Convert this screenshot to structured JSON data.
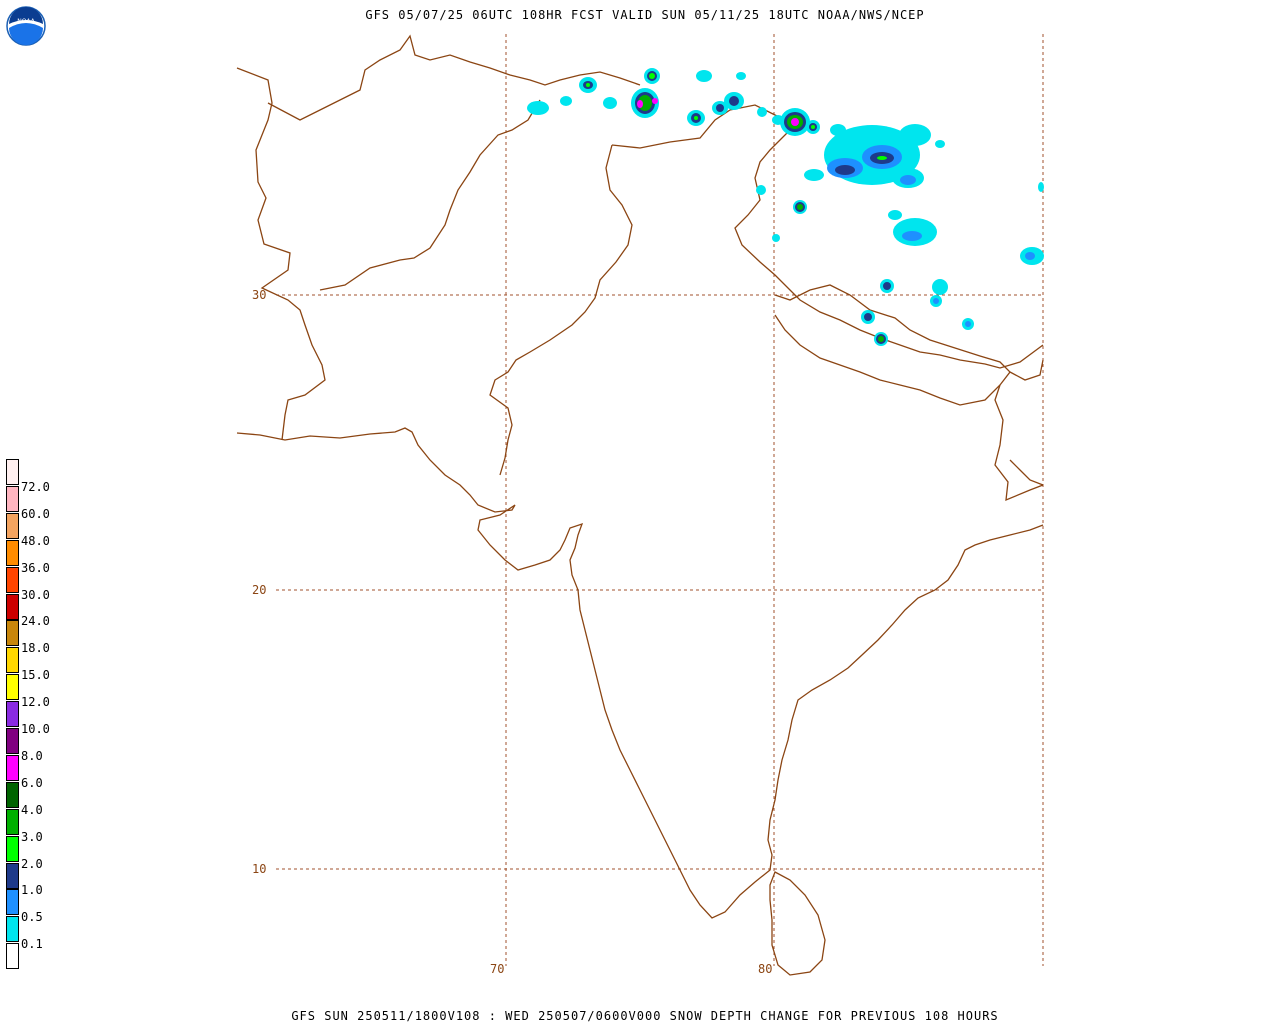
{
  "header": {
    "title": "GFS 05/07/25 06UTC 108HR FCST VALID SUN 05/11/25 18UTC NOAA/NWS/NCEP"
  },
  "footer": {
    "title": "GFS SUN 250511/1800V108 : WED 250507/0600V000 SNOW DEPTH CHANGE FOR PREVIOUS 108 HOURS"
  },
  "logo": {
    "text": "NOAA",
    "icon": "noaa-logo-icon"
  },
  "map": {
    "lat_labels": [
      "30",
      "20",
      "10"
    ],
    "lon_labels": [
      "70",
      "80"
    ],
    "colors": {
      "border": "#8b4513",
      "grid": "#a0522d"
    }
  },
  "legend": {
    "levels": [
      {
        "label": "72.0",
        "color": "#ffb6c1"
      },
      {
        "label": "60.0",
        "color": "#f4a460"
      },
      {
        "label": "48.0",
        "color": "#ff8c00"
      },
      {
        "label": "36.0",
        "color": "#ff4500"
      },
      {
        "label": "30.0",
        "color": "#cc0000"
      },
      {
        "label": "24.0",
        "color": "#c8860b"
      },
      {
        "label": "18.0",
        "color": "#ffd700"
      },
      {
        "label": "15.0",
        "color": "#ffff00"
      },
      {
        "label": "12.0",
        "color": "#8a2be2"
      },
      {
        "label": "10.0",
        "color": "#800080"
      },
      {
        "label": "8.0",
        "color": "#ff00ff"
      },
      {
        "label": "6.0",
        "color": "#006400"
      },
      {
        "label": "4.0",
        "color": "#00b000"
      },
      {
        "label": "3.0",
        "color": "#00ff00"
      },
      {
        "label": "2.0",
        "color": "#1e3a8a"
      },
      {
        "label": "1.0",
        "color": "#1e90ff"
      },
      {
        "label": "0.5",
        "color": "#00e5ee"
      },
      {
        "label": "0.1",
        "color": "#ffffff"
      }
    ],
    "top_color": "#fff0f0"
  }
}
